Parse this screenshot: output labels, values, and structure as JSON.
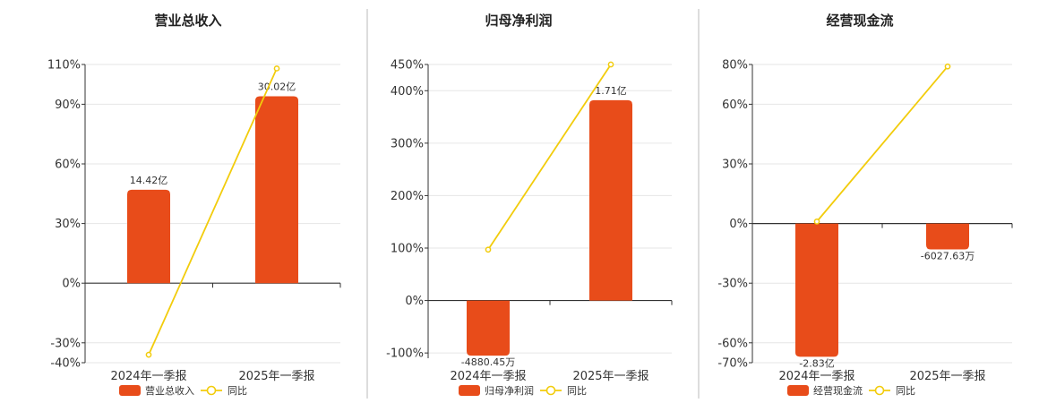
{
  "colors": {
    "bar": "#E84C1A",
    "line": "#F2CC0C",
    "grid": "#E6E6E6",
    "axis": "#333333",
    "divider": "#BBBBBB"
  },
  "chart_data": [
    {
      "type": "bar",
      "title": "营业总收入",
      "categories": [
        "2024年一季报",
        "2025年一季报"
      ],
      "series": [
        {
          "name": "营业总收入",
          "type": "bar",
          "values": [
            47,
            94
          ],
          "labels": [
            "14.42亿",
            "30.02亿"
          ]
        },
        {
          "name": "同比",
          "type": "line",
          "values": [
            -36,
            108
          ]
        }
      ],
      "yticks": [
        110,
        90,
        60,
        30,
        0,
        -30,
        -40
      ],
      "ytick_labels": [
        "110%",
        "90%",
        "60%",
        "30%",
        "0%",
        "-30%",
        "-40%"
      ],
      "ylim": [
        -40,
        110
      ],
      "grid": true,
      "legend": "bottom"
    },
    {
      "type": "bar",
      "title": "归母净利润",
      "categories": [
        "2024年一季报",
        "2025年一季报"
      ],
      "series": [
        {
          "name": "归母净利润",
          "type": "bar",
          "values": [
            -105,
            382
          ],
          "labels": [
            "-4880.45万",
            "1.71亿"
          ]
        },
        {
          "name": "同比",
          "type": "line",
          "values": [
            97,
            450
          ]
        }
      ],
      "yticks": [
        450,
        400,
        300,
        200,
        100,
        0,
        -100
      ],
      "ytick_labels": [
        "450%",
        "400%",
        "300%",
        "200%",
        "100%",
        "0%",
        "-100%"
      ],
      "ylim": [
        -110,
        450
      ],
      "grid": true,
      "legend": "bottom"
    },
    {
      "type": "bar",
      "title": "经营现金流",
      "categories": [
        "2024年一季报",
        "2025年一季报"
      ],
      "series": [
        {
          "name": "经营现金流",
          "type": "bar",
          "values": [
            -67,
            -13
          ],
          "labels": [
            "-2.83亿",
            "-6027.63万"
          ]
        },
        {
          "name": "同比",
          "type": "line",
          "values": [
            1,
            79
          ]
        }
      ],
      "yticks": [
        80,
        60,
        30,
        0,
        -30,
        -60,
        -70
      ],
      "ytick_labels": [
        "80%",
        "60%",
        "30%",
        "0%",
        "-30%",
        "-60%",
        "-70%"
      ],
      "ylim": [
        -70,
        80
      ],
      "grid": true,
      "legend": "bottom"
    }
  ]
}
